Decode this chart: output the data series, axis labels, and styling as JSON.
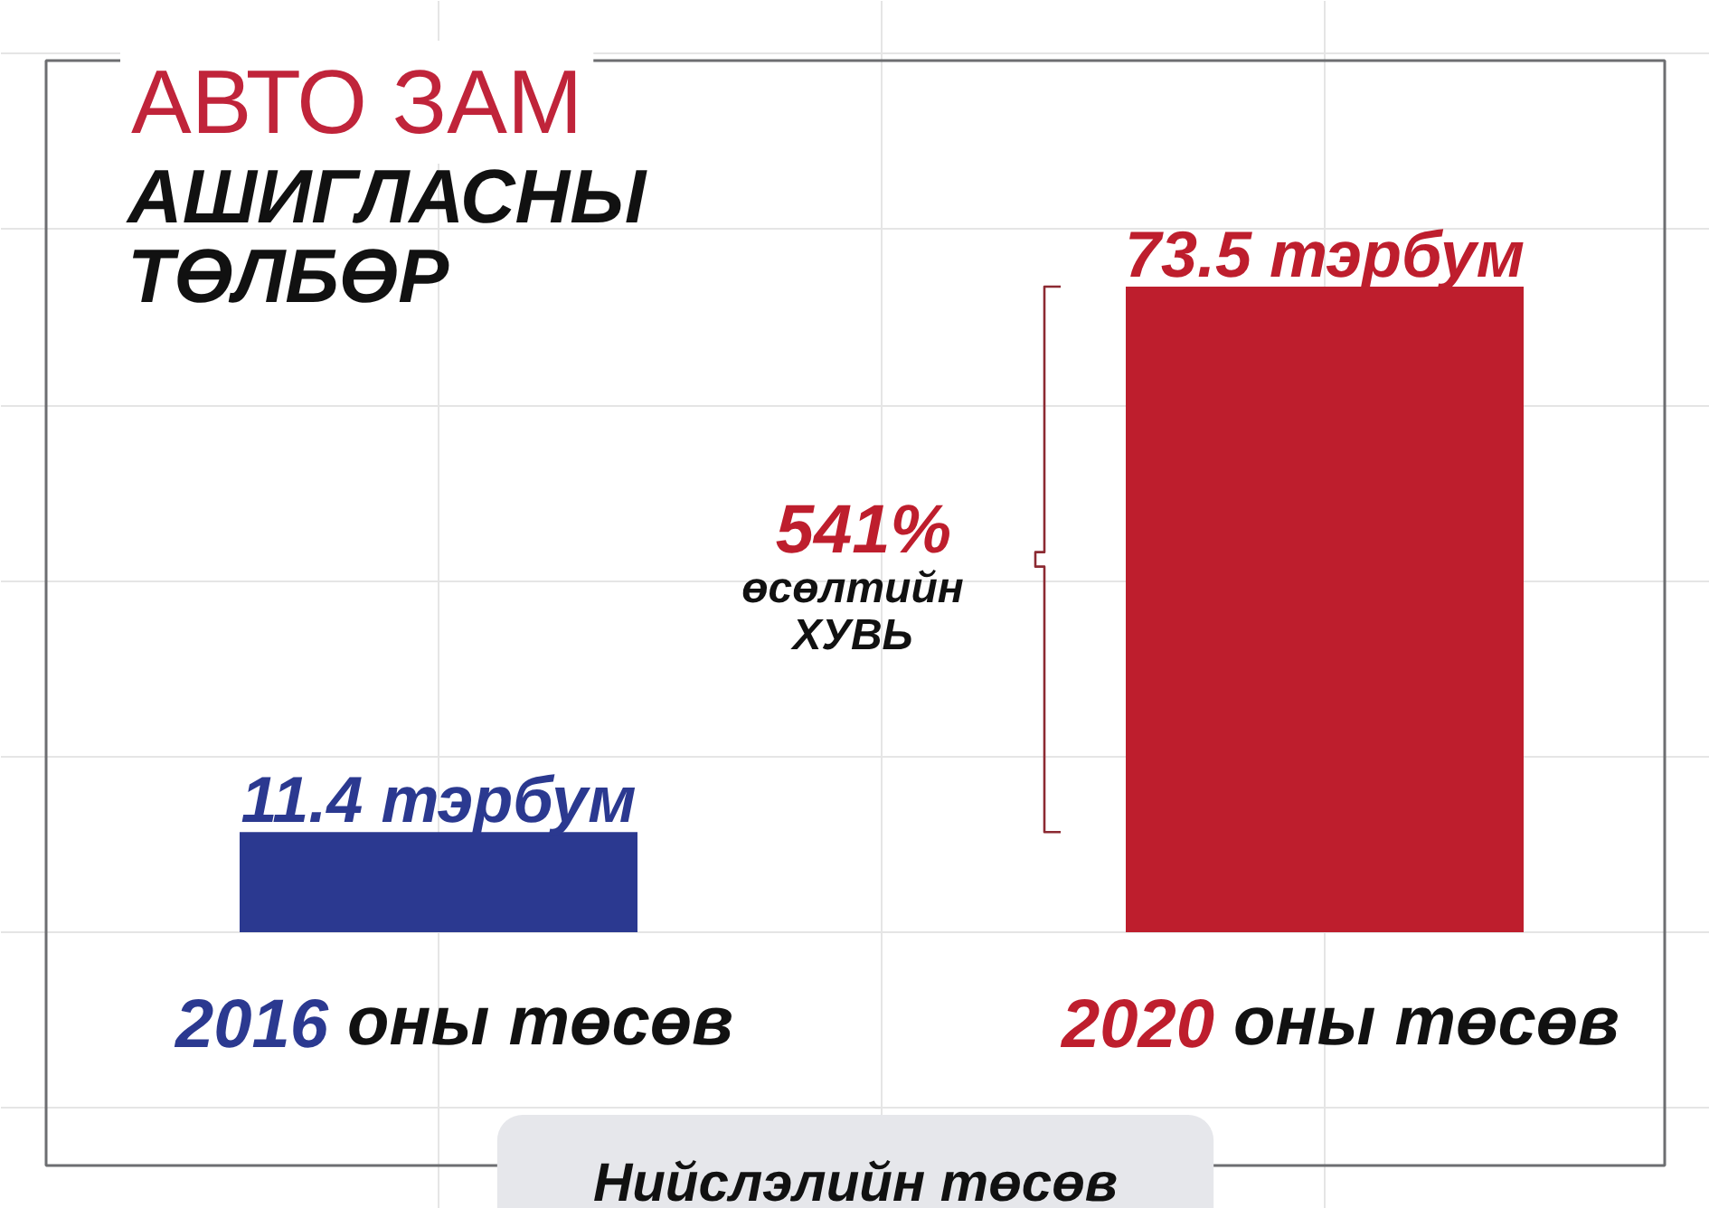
{
  "chart_data": {
    "type": "bar",
    "title": "АВТО ЗАМ",
    "subtitle": "АШИГЛАСНЫ ТӨЛБӨР",
    "xlabel": "Нийслэлийн төсөв",
    "categories": [
      "2016 оны төсөв",
      "2020 оны төсөв"
    ],
    "values": [
      11.4,
      73.5
    ],
    "colors": [
      "#2b3990",
      "#be1e2d"
    ],
    "value_labels": [
      "11.4 тэрбум",
      "73.5 тэрбум"
    ],
    "annotations": [
      "541%",
      "өсөлтийн ХУВЬ"
    ],
    "tick_labels": "x"
  }
}
